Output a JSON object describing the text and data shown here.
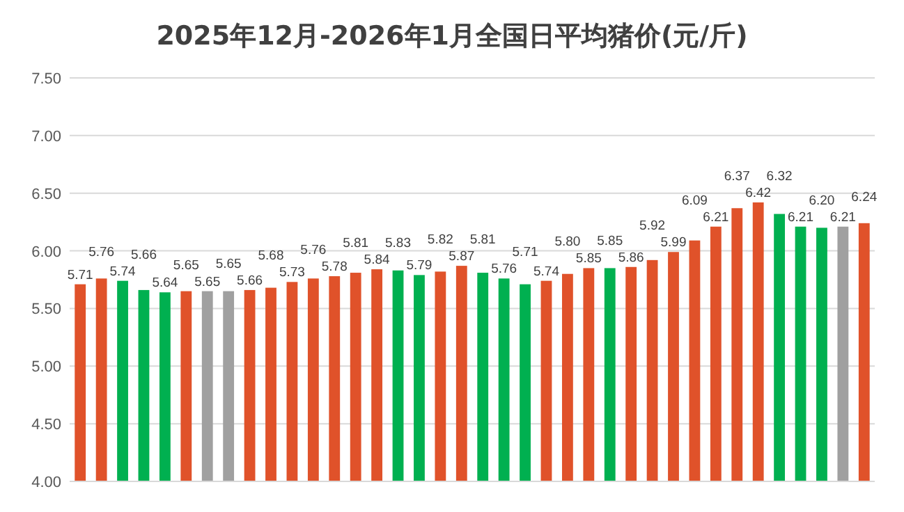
{
  "chart_data": {
    "type": "bar",
    "title": "2025年12月-2026年1月全国日平均猪价(元/斤)",
    "categories": [
      null,
      null,
      null,
      null,
      null,
      null,
      null,
      null,
      null,
      null,
      null,
      null,
      null,
      null,
      null,
      null,
      null,
      null,
      null,
      null,
      null,
      null,
      null,
      null,
      null,
      null,
      null,
      null,
      null,
      null,
      null,
      null,
      null,
      null,
      null,
      null,
      null,
      null
    ],
    "values": [
      5.71,
      5.76,
      5.74,
      5.66,
      5.64,
      5.65,
      5.65,
      5.65,
      5.66,
      5.68,
      5.73,
      5.76,
      5.78,
      5.81,
      5.84,
      5.83,
      5.79,
      5.82,
      5.87,
      5.81,
      5.76,
      5.71,
      5.74,
      5.8,
      5.85,
      5.85,
      5.86,
      5.92,
      5.99,
      6.09,
      6.21,
      6.37,
      6.42,
      6.32,
      6.21,
      6.2,
      6.21,
      6.24
    ],
    "value_labels": [
      "5.71",
      "5.76",
      "5.74",
      "5.66",
      "5.64",
      "5.65",
      "5.65",
      "5.65",
      "5.66",
      "5.68",
      "5.73",
      "5.76",
      "5.78",
      "5.81",
      "5.84",
      "5.83",
      "5.79",
      "5.82",
      "5.87",
      "5.81",
      "5.76",
      "5.71",
      "5.74",
      "5.80",
      "5.85",
      "5.85",
      "5.86",
      "5.92",
      "5.99",
      "6.09",
      "6.21",
      "6.37",
      "6.42",
      "6.32",
      "6.21",
      "6.20",
      "6.21",
      "6.24"
    ],
    "colors": [
      "#e0522a",
      "#e0522a",
      "#00b050",
      "#00b050",
      "#00b050",
      "#e0522a",
      "#a0a0a0",
      "#a0a0a0",
      "#e0522a",
      "#e0522a",
      "#e0522a",
      "#e0522a",
      "#e0522a",
      "#e0522a",
      "#e0522a",
      "#00b050",
      "#00b050",
      "#e0522a",
      "#e0522a",
      "#00b050",
      "#00b050",
      "#00b050",
      "#e0522a",
      "#e0522a",
      "#e0522a",
      "#00b050",
      "#e0522a",
      "#e0522a",
      "#e0522a",
      "#e0522a",
      "#e0522a",
      "#e0522a",
      "#e0522a",
      "#00b050",
      "#00b050",
      "#00b050",
      "#a0a0a0",
      "#e0522a"
    ],
    "ylim": [
      4,
      7.5
    ],
    "yticks": [
      {
        "value": 4,
        "label": "4.00"
      },
      {
        "value": 4.5,
        "label": "4.50"
      },
      {
        "value": 5,
        "label": "5.00"
      },
      {
        "value": 5.5,
        "label": "5.50"
      },
      {
        "value": 6,
        "label": "6.00"
      },
      {
        "value": 6.5,
        "label": "6.50"
      },
      {
        "value": 7,
        "label": "7.00"
      },
      {
        "value": 7.5,
        "label": "7.50"
      }
    ],
    "grid": "y"
  }
}
